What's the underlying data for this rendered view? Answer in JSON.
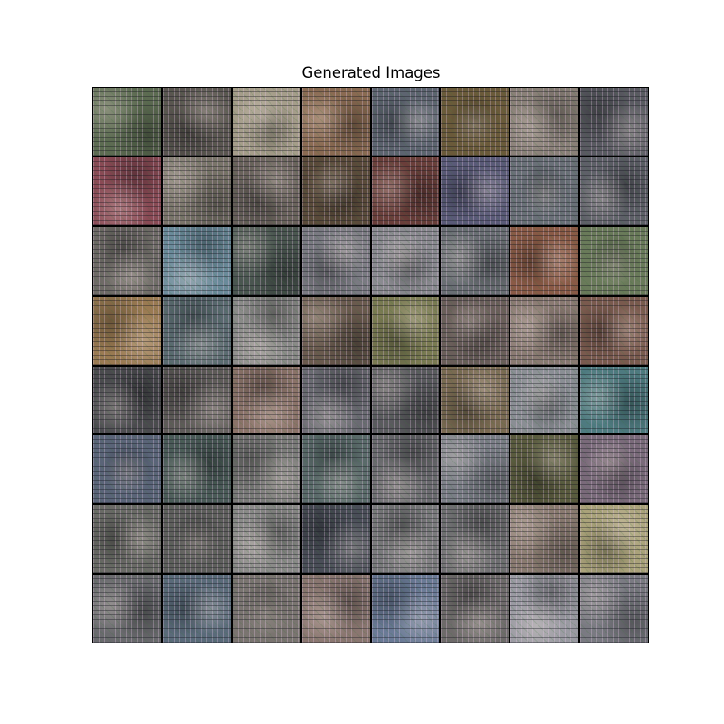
{
  "title": "Generated Images",
  "grid": {
    "rows": 8,
    "cols": 8
  },
  "tiles": [
    [
      "#5d6b52",
      "#5a5550",
      "#a59d8a",
      "#8a6a52",
      "#5d6470",
      "#6b5a3a",
      "#8a8078",
      "#5a5a62"
    ],
    [
      "#8a4a55",
      "#7a746a",
      "#6a625c",
      "#5a4a3a",
      "#6a3e3a",
      "#5a5a78",
      "#6a7078",
      "#5e6068"
    ],
    [
      "#6e6a66",
      "#6a8a9a",
      "#4a5550",
      "#7a7a82",
      "#8a8a90",
      "#6a6e74",
      "#8a5a46",
      "#6a7a5a"
    ],
    [
      "#9a7a52",
      "#5a6a70",
      "#8a8a88",
      "#6a5a4e",
      "#7a7a52",
      "#6a5e5a",
      "#8a7a72",
      "#7a5a4e"
    ],
    [
      "#4a4a4e",
      "#5e5a58",
      "#8a7268",
      "#6a6a72",
      "#5a5a5e",
      "#7a6a52",
      "#8a8e94",
      "#4e7a80"
    ],
    [
      "#5a6478",
      "#4a5a58",
      "#7a7a78",
      "#5a6a6a",
      "#6a6a6e",
      "#7a7e86",
      "#5a5a3e",
      "#7a6a7a"
    ],
    [
      "#6a6a66",
      "#5e5e5c",
      "#8a8a88",
      "#4a4e58",
      "#7a7a7c",
      "#6e6e70",
      "#8a7a70",
      "#aaa27a"
    ],
    [
      "#6a6a6e",
      "#5a6a7a",
      "#7a7470",
      "#8a7670",
      "#6a7a96",
      "#6e6a6a",
      "#9a9aa2",
      "#7a7a82"
    ]
  ]
}
